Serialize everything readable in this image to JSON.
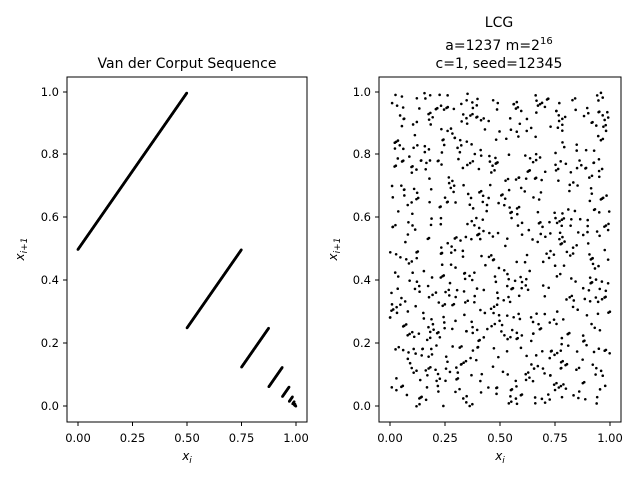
{
  "figure": {
    "background": "#ffffff",
    "marker_color": "#000000"
  },
  "chart_data": [
    {
      "type": "scatter",
      "title": "Van der Corput Sequence",
      "xlabel": "x",
      "xlabel_sub": "i",
      "ylabel": "x",
      "ylabel_sub": "i+1",
      "xlim": [
        -0.05,
        1.05
      ],
      "ylim": [
        -0.05,
        1.05
      ],
      "xticks": [
        "0.00",
        "0.25",
        "0.50",
        "0.75",
        "1.00"
      ],
      "yticks": [
        "0.0",
        "0.2",
        "0.4",
        "0.6",
        "0.8",
        "1.0"
      ],
      "grid": false,
      "base": 2,
      "num_points": 1024,
      "marker_size": 2
    },
    {
      "type": "scatter",
      "title_lines": [
        "LCG",
        "a=1237 m=2",
        "c=1, seed=12345"
      ],
      "title_superscript": "16",
      "xlabel": "x",
      "xlabel_sub": "i",
      "ylabel": "x",
      "ylabel_sub": "i+1",
      "xlim": [
        -0.05,
        1.05
      ],
      "ylim": [
        -0.05,
        1.05
      ],
      "xticks": [
        "0.00",
        "0.25",
        "0.50",
        "0.75",
        "1.00"
      ],
      "yticks": [
        "0.0",
        "0.2",
        "0.4",
        "0.6",
        "0.8",
        "1.0"
      ],
      "grid": false,
      "a": 1237,
      "m": 65536,
      "c": 1,
      "seed": 12345,
      "num_points": 800,
      "marker_size": 2
    }
  ]
}
